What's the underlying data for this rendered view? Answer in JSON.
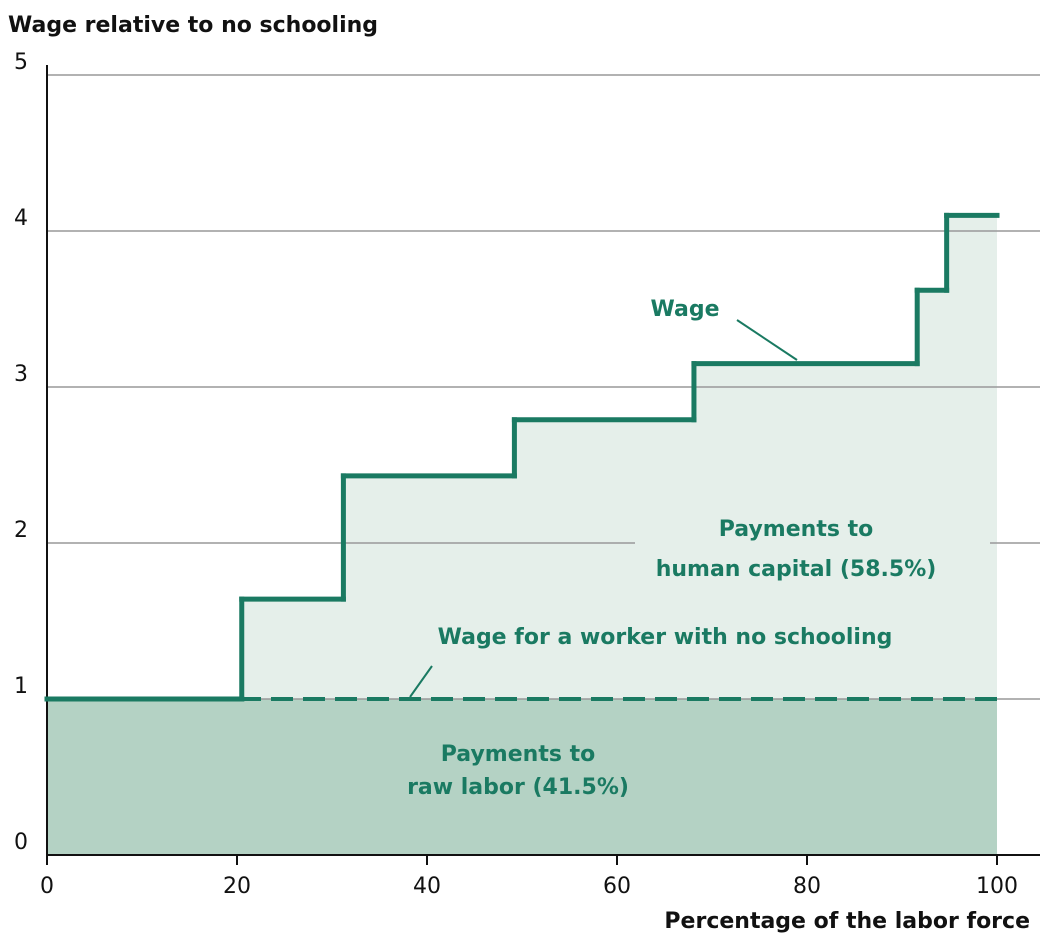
{
  "chart_data": {
    "type": "step",
    "y_axis_label": "Wage relative to no schooling",
    "x_axis_label": "Percentage of the labor force",
    "xlim": [
      0,
      100
    ],
    "xticks": [
      0,
      20,
      40,
      60,
      80,
      100
    ],
    "ylim": [
      0,
      5
    ],
    "yticks": [
      0,
      1,
      2,
      3,
      4,
      5
    ],
    "grid": true,
    "series": [
      {
        "name": "Wage",
        "color": "#1a7a62",
        "x": [
          0,
          20.5,
          31.2,
          49.2,
          68.1,
          91.6,
          94.7
        ],
        "values": [
          1,
          1.64,
          2.43,
          2.79,
          3.15,
          3.62,
          4.1
        ]
      }
    ],
    "reference_line": {
      "label": "Wage for a worker with no schooling",
      "value": 1,
      "color": "#1a7a62"
    },
    "areas": [
      {
        "label": [
          "Payments to",
          "raw labor (41.5%)"
        ],
        "color": "#b4d2c4"
      },
      {
        "label": [
          "Payments to",
          "human capital (58.5%)"
        ],
        "color": "#e5efea"
      }
    ]
  }
}
